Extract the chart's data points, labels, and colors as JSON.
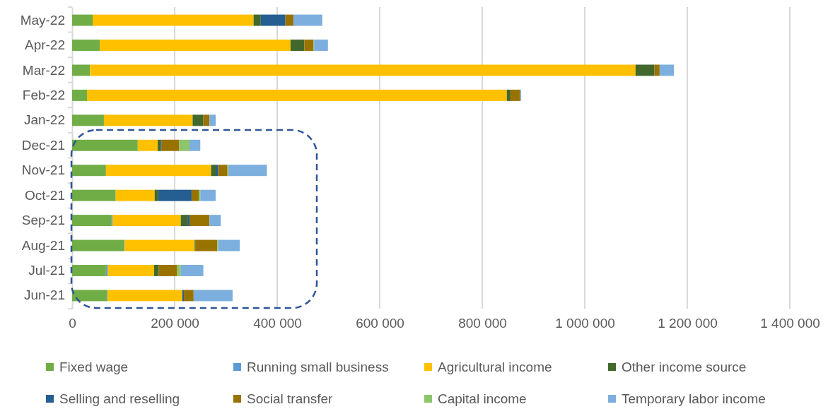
{
  "chart_data": {
    "type": "bar",
    "orientation": "horizontal",
    "stacked": true,
    "grid": "x",
    "legend": "bottom",
    "categories": [
      "May-22",
      "Apr-22",
      "Mar-22",
      "Feb-22",
      "Jan-22",
      "Dec-21",
      "Nov-21",
      "Oct-21",
      "Sep-21",
      "Aug-21",
      "Jul-21",
      "Jun-21"
    ],
    "xlim": [
      0,
      1400000
    ],
    "xticks": [
      0,
      {
        "value": 200000,
        "label": "200 000"
      },
      {
        "value": 400000,
        "label": "400 000"
      },
      {
        "value": 600000,
        "label": "600 000"
      },
      {
        "value": 800000,
        "label": "800 000"
      },
      {
        "value": 1000000,
        "label": "1 000 000"
      },
      {
        "value": 1200000,
        "label": "1 200 000"
      },
      {
        "value": 1400000,
        "label": "1 400 000"
      }
    ],
    "series": [
      {
        "name": "Fixed wage",
        "color": "#70ad47",
        "values": [
          40000,
          54000,
          35000,
          29000,
          62000,
          128000,
          66000,
          85000,
          77000,
          101000,
          66000,
          68000
        ]
      },
      {
        "name": "Running small business",
        "color": "#5b9bd5",
        "values": [
          0,
          0,
          0,
          0,
          0,
          0,
          0,
          0,
          2000,
          1000,
          3000,
          1000
        ]
      },
      {
        "name": "Agricultural income",
        "color": "#ffc000",
        "values": [
          314000,
          372000,
          1064000,
          819000,
          173000,
          39000,
          205000,
          76000,
          133000,
          137000,
          91000,
          146000
        ]
      },
      {
        "name": "Other income source",
        "color": "#43682b",
        "values": [
          14000,
          27000,
          37000,
          7000,
          21000,
          5000,
          9000,
          7000,
          13000,
          2000,
          9000,
          0
        ]
      },
      {
        "name": "Selling and reselling",
        "color": "#255e91",
        "values": [
          48000,
          0,
          0,
          0,
          0,
          2000,
          5000,
          65000,
          4000,
          0,
          0,
          3000
        ]
      },
      {
        "name": "Social transfer",
        "color": "#997300",
        "values": [
          16000,
          18000,
          10000,
          19000,
          12000,
          35000,
          18000,
          14000,
          39000,
          42000,
          36000,
          19000
        ]
      },
      {
        "name": "Capital income",
        "color": "#8cc56a",
        "values": [
          0,
          1000,
          0,
          0,
          0,
          20000,
          2000,
          3000,
          0,
          2000,
          7000,
          0
        ]
      },
      {
        "name": "Temporary labor income",
        "color": "#7cafdd",
        "values": [
          56000,
          27000,
          28000,
          2000,
          12000,
          21000,
          75000,
          30000,
          22000,
          42000,
          44000,
          76000
        ]
      }
    ]
  }
}
